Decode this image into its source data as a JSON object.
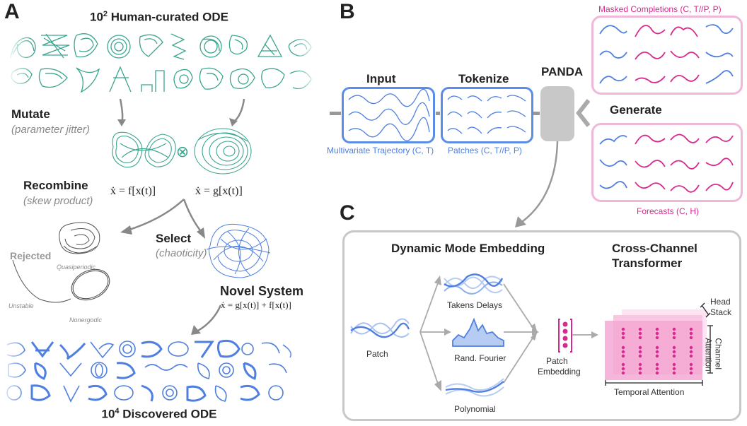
{
  "panels": {
    "a": "A",
    "b": "B",
    "c": "C"
  },
  "panel_a": {
    "top_title_base": "10",
    "top_title_exp": "2",
    "top_title_rest": " Human-curated ODE",
    "mutate": "Mutate",
    "mutate_sub": "(parameter jitter)",
    "recombine": "Recombine",
    "recombine_sub": "(skew product)",
    "eq_f": "ẋ = f[x(t)]",
    "eq_g": "ẋ = g[x(t)]",
    "otimes": "⊗",
    "select": "Select",
    "select_sub": "(chaoticity)",
    "rejected": "Rejected",
    "quasiperiodic": "Quasiperiodic",
    "unstable": "Unstable",
    "nonergodic": "Nonergodic",
    "novel_system": "Novel System",
    "eq_novel": "ẋ = g[x(t)] + f[x(t)]",
    "bottom_title_base": "10",
    "bottom_title_exp": "4",
    "bottom_title_rest": " Discovered ODE"
  },
  "panel_b": {
    "input": "Input",
    "tokenize": "Tokenize",
    "panda": "PANDA",
    "generate": "Generate",
    "masked_label": "Masked Completions (C, T//P, P)",
    "forecasts_label": "Forecasts (C, H)",
    "traj_label": "Multivariate Trajectory (C, T)",
    "patches_label": "Patches (C, T//P, P)"
  },
  "panel_c": {
    "dme_title": "Dynamic Mode Embedding",
    "cct_title_1": "Cross-Channel",
    "cct_title_2": "Transformer",
    "patch": "Patch",
    "takens": "Takens Delays",
    "fourier": "Rand. Fourier",
    "polynomial": "Polynomial",
    "patch_embedding_1": "Patch",
    "patch_embedding_2": "Embedding",
    "head_1": "Head",
    "head_2": "Stack",
    "channel_1": "Channel",
    "channel_2": "Attention",
    "temporal": "Temporal Attention"
  },
  "colors": {
    "teal": "#3aa58f",
    "blue": "#4f7fe0",
    "pink": "#d62a8e",
    "gray": "#9a9a9a"
  }
}
